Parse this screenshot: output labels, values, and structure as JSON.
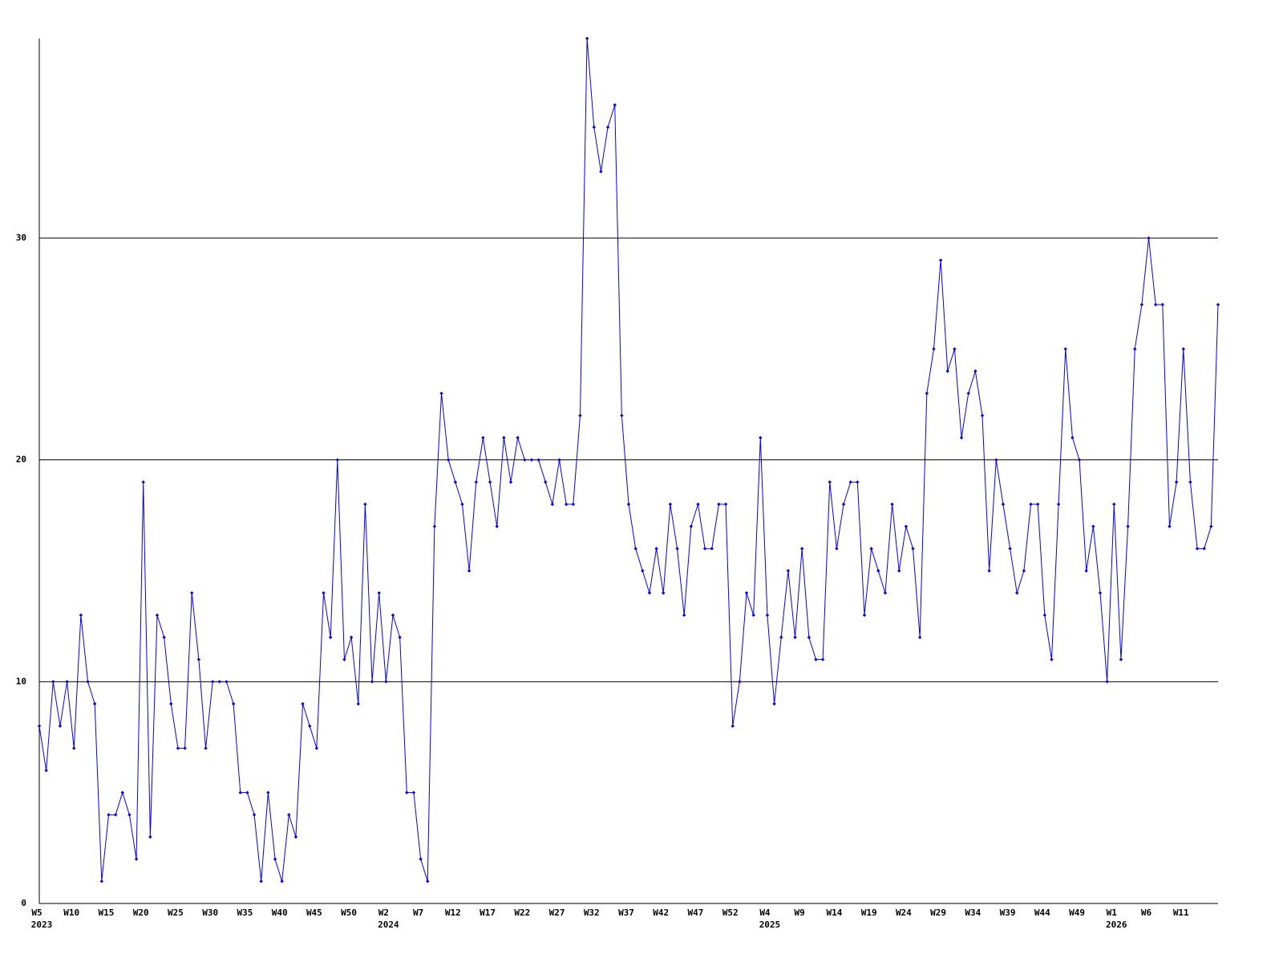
{
  "chart_data": {
    "type": "line",
    "categories": [
      "W5",
      null,
      null,
      null,
      null,
      "W10",
      null,
      null,
      null,
      null,
      "W15",
      null,
      null,
      null,
      null,
      "W20",
      null,
      null,
      null,
      null,
      "W25",
      null,
      null,
      null,
      null,
      "W30",
      null,
      null,
      null,
      null,
      "W35",
      null,
      null,
      null,
      null,
      "W40",
      null,
      null,
      null,
      null,
      "W45",
      null,
      null,
      null,
      null,
      "W50",
      null,
      null,
      null,
      null,
      "W2",
      null,
      null,
      null,
      null,
      "W7",
      null,
      null,
      null,
      null,
      "W12",
      null,
      null,
      null,
      null,
      "W17",
      null,
      null,
      null,
      null,
      "W22",
      null,
      null,
      null,
      null,
      "W27",
      null,
      null,
      null,
      null,
      "W32",
      null,
      null,
      null,
      null,
      "W37",
      null,
      null,
      null,
      null,
      "W42",
      null,
      null,
      null,
      null,
      "W47",
      null,
      null,
      null,
      null,
      "W52",
      null,
      null,
      null,
      null,
      "W4",
      null,
      null,
      null,
      null,
      "W9",
      null,
      null,
      null,
      null,
      "W14",
      null,
      null,
      null,
      null,
      "W19",
      null,
      null,
      null,
      null,
      "W24",
      null,
      null,
      null,
      null,
      "W29",
      null,
      null,
      null,
      null,
      "W34",
      null,
      null,
      null,
      null,
      "W39",
      null,
      null,
      null,
      null,
      "W44",
      null,
      null,
      null,
      null,
      "W49",
      null,
      null,
      null,
      null,
      "W1",
      null,
      null,
      null,
      null,
      "W6",
      null,
      null,
      null,
      null,
      "W11",
      null,
      null,
      null,
      null,
      null
    ],
    "x_year_labels": [
      "2023",
      null,
      null,
      null,
      null,
      null,
      null,
      null,
      null,
      null,
      null,
      null,
      null,
      null,
      null,
      null,
      null,
      null,
      null,
      null,
      null,
      null,
      null,
      null,
      null,
      null,
      null,
      null,
      null,
      null,
      null,
      null,
      null,
      null,
      null,
      null,
      null,
      null,
      null,
      null,
      null,
      null,
      null,
      null,
      null,
      null,
      null,
      null,
      null,
      null,
      "2024",
      null,
      null,
      null,
      null,
      null,
      null,
      null,
      null,
      null,
      null,
      null,
      null,
      null,
      null,
      null,
      null,
      null,
      null,
      null,
      null,
      null,
      null,
      null,
      null,
      null,
      null,
      null,
      null,
      null,
      null,
      null,
      null,
      null,
      null,
      null,
      null,
      null,
      null,
      null,
      null,
      null,
      null,
      null,
      null,
      null,
      null,
      null,
      null,
      null,
      null,
      null,
      null,
      null,
      null,
      "2025",
      null,
      null,
      null,
      null,
      null,
      null,
      null,
      null,
      null,
      null,
      null,
      null,
      null,
      null,
      null,
      null,
      null,
      null,
      null,
      null,
      null,
      null,
      null,
      null,
      null,
      null,
      null,
      null,
      null,
      null,
      null,
      null,
      null,
      null,
      null,
      null,
      null,
      null,
      null,
      null,
      null,
      null,
      null,
      null,
      null,
      null,
      null,
      null,
      null,
      "2026",
      null,
      null,
      null,
      null,
      null,
      null,
      null,
      null,
      null,
      null,
      null,
      null,
      null,
      null,
      null
    ],
    "values": [
      8,
      6,
      10,
      8,
      10,
      7,
      13,
      10,
      9,
      1,
      4,
      4,
      5,
      4,
      2,
      19,
      3,
      13,
      12,
      9,
      7,
      7,
      14,
      11,
      7,
      10,
      10,
      10,
      9,
      5,
      5,
      4,
      1,
      5,
      2,
      1,
      4,
      3,
      9,
      8,
      7,
      14,
      12,
      20,
      11,
      12,
      9,
      18,
      10,
      14,
      10,
      13,
      12,
      5,
      5,
      2,
      1,
      17,
      23,
      20,
      19,
      18,
      15,
      19,
      21,
      19,
      17,
      21,
      19,
      21,
      20,
      20,
      20,
      19,
      18,
      20,
      18,
      18,
      22,
      39,
      35,
      33,
      35,
      36,
      22,
      18,
      16,
      15,
      14,
      16,
      14,
      18,
      16,
      13,
      17,
      18,
      16,
      16,
      18,
      18,
      8,
      10,
      14,
      13,
      21,
      13,
      9,
      12,
      15,
      12,
      16,
      12,
      11,
      11,
      19,
      16,
      18,
      19,
      19,
      13,
      16,
      15,
      14,
      18,
      15,
      17,
      16,
      12,
      23,
      25,
      29,
      24,
      25,
      21,
      23,
      24,
      22,
      15,
      20,
      18,
      16,
      14,
      15,
      18,
      18,
      13,
      11,
      18,
      25,
      21,
      20,
      15,
      17,
      14,
      10,
      18,
      11,
      17,
      25,
      27,
      30,
      27,
      27,
      17,
      19,
      25,
      19,
      16,
      16,
      17,
      27
    ],
    "color": "#0000ff",
    "ylim": [
      0,
      39
    ],
    "yticks": [
      0,
      10,
      20,
      30
    ],
    "grid": true
  }
}
